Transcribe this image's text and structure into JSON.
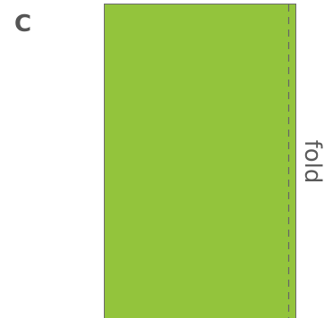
{
  "step": {
    "letter": "C"
  },
  "fabric": {
    "color": "#93C43C",
    "border_color": "#6b6b6b",
    "fold_line_color": "#666666",
    "fold_line_style": "dashed"
  },
  "fold": {
    "label": "fold"
  }
}
